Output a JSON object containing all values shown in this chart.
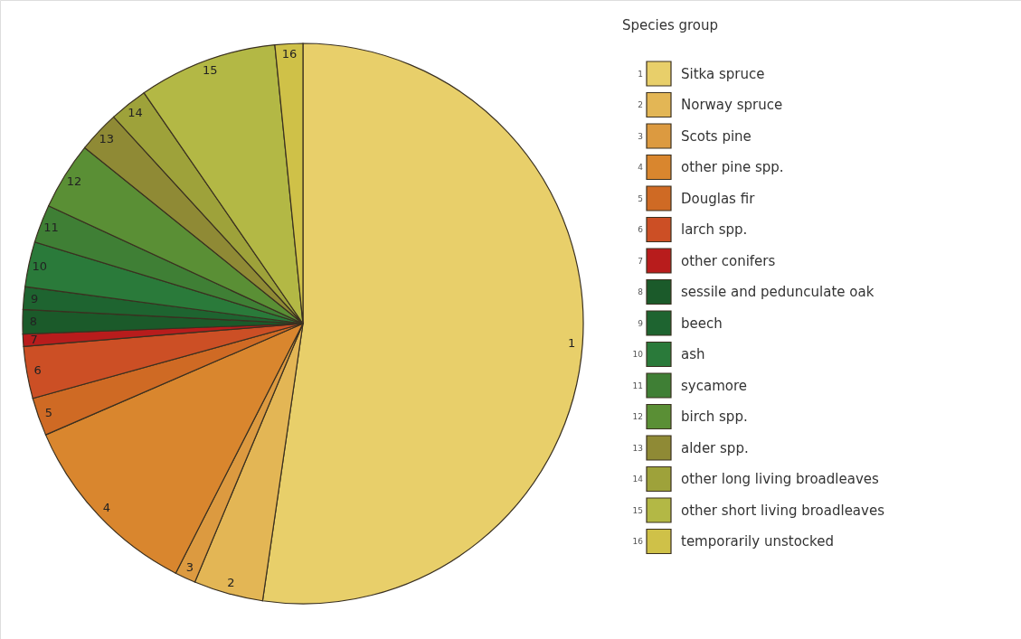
{
  "chart_data": {
    "type": "pie",
    "legend_title": "Species group",
    "legend": "right",
    "categories": [
      "Sitka spruce",
      "Norway spruce",
      "Scots pine",
      "other pine spp.",
      "Douglas fir",
      "larch spp.",
      "other conifers",
      "sessile and pedunculate oak",
      "beech",
      "ash",
      "sycamore",
      "birch spp.",
      "alder spp.",
      "other long living broadleaves",
      "other short living broadleaves",
      "temporarily unstocked"
    ],
    "values": [
      52.3,
      4,
      1.2,
      11,
      2.2,
      3,
      0.7,
      1.4,
      1.3,
      2.6,
      2.2,
      3.9,
      2.4,
      2.2,
      8,
      1.6
    ],
    "colors": [
      "#e8cf6a",
      "#e3b655",
      "#dc9a40",
      "#d9862e",
      "#cf6a24",
      "#cc4f25",
      "#b81c1c",
      "#1b5a2a",
      "#1e6430",
      "#2a7a3a",
      "#3f7f35",
      "#5a8f35",
      "#8f8a35",
      "#9ea23a",
      "#b3b845",
      "#cfc148"
    ],
    "annotations": [
      "1",
      "2",
      "3",
      "4",
      "5",
      "6",
      "7",
      "8",
      "9",
      "10",
      "11",
      "12",
      "13",
      "14",
      "15",
      "16"
    ]
  }
}
